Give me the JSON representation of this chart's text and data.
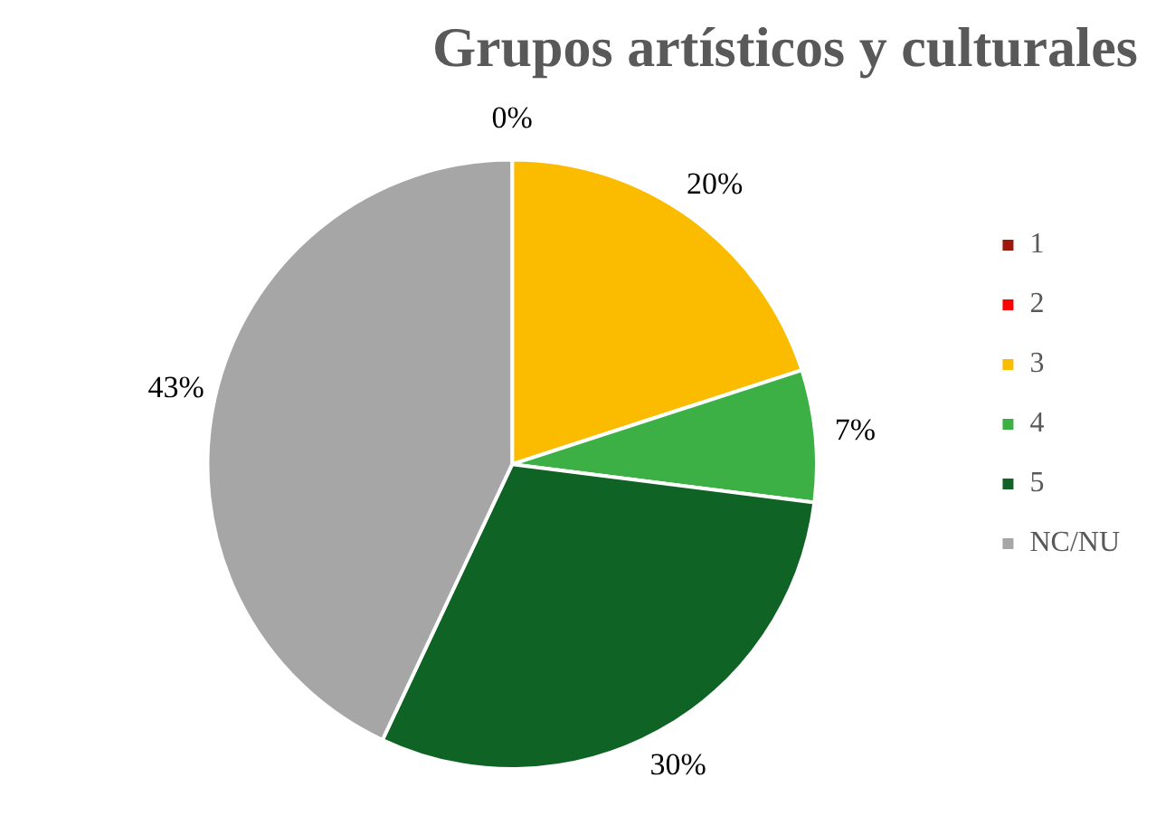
{
  "chart_data": {
    "type": "pie",
    "title": "Grupos artísticos y culturales",
    "categories": [
      "1",
      "2",
      "3",
      "4",
      "5",
      "NC/NU"
    ],
    "values": [
      0,
      0,
      20,
      7,
      30,
      43
    ],
    "colors": [
      "#9c1a0c",
      "#ff0000",
      "#fbbc00",
      "#3cb044",
      "#0f6325",
      "#a6a6a6"
    ],
    "value_labels": [
      "0%",
      null,
      "20%",
      "7%",
      "30%",
      "43%"
    ],
    "legend": "right"
  }
}
